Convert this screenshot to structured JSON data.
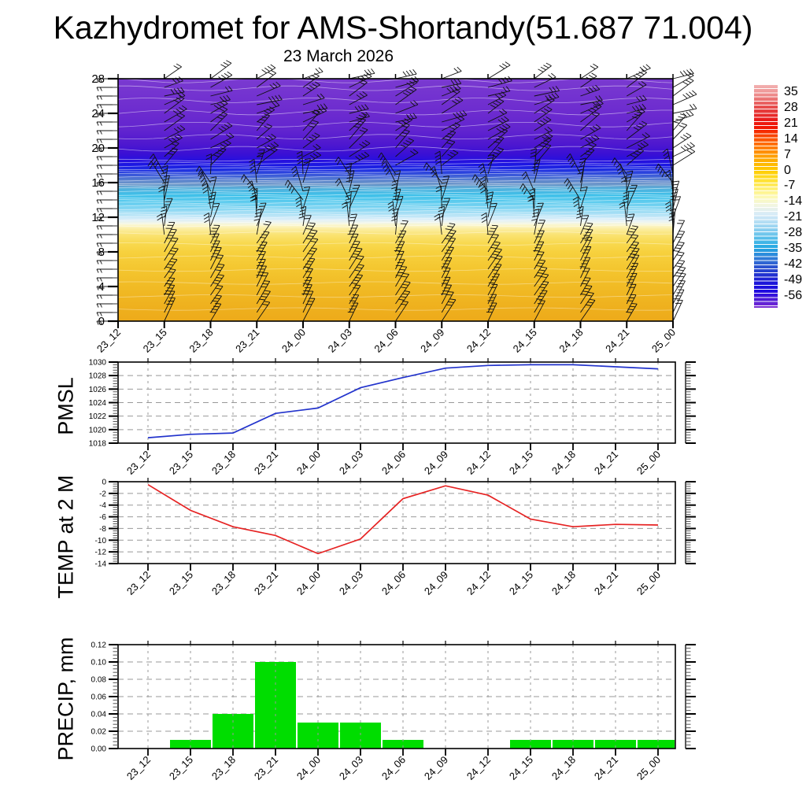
{
  "title": "Kazhydromet for AMS-Shortandy(51.687 71.004)",
  "subtitle": "23 March 2026",
  "x_labels": [
    "23_12",
    "23_15",
    "23_18",
    "23_21",
    "24_00",
    "24_03",
    "24_06",
    "24_09",
    "24_12",
    "24_15",
    "24_18",
    "24_21",
    "25_00"
  ],
  "chart_data": [
    {
      "id": "upper_air_section",
      "type": "heatmap",
      "title": "23 March 2026",
      "description": "time-height temperature cross-section with wind barbs and white contour lines",
      "x_categories": [
        "23_12",
        "23_15",
        "23_18",
        "23_21",
        "24_00",
        "24_03",
        "24_06",
        "24_09",
        "24_12",
        "24_15",
        "24_18",
        "24_21",
        "25_00"
      ],
      "ylim": [
        0,
        28
      ],
      "yticks": [
        0,
        4,
        8,
        12,
        16,
        20,
        24,
        28
      ],
      "ytick_labels": [
        "0",
        "4",
        "8",
        "12",
        "16",
        "20",
        "24",
        "28"
      ],
      "barb_columns": 13,
      "barb_rows": 29,
      "barb_color": "#101010",
      "contour_color": "#ffffff",
      "palette_stops": [
        {
          "pos": 0.0,
          "color": "#7a3ad0"
        },
        {
          "pos": 0.143,
          "color": "#6c2bcf"
        },
        {
          "pos": 0.214,
          "color": "#6124cf"
        },
        {
          "pos": 0.268,
          "color": "#4f18cf"
        },
        {
          "pos": 0.31,
          "color": "#3a10d4"
        },
        {
          "pos": 0.336,
          "color": "#2810dd"
        },
        {
          "pos": 0.357,
          "color": "#1a17e3"
        },
        {
          "pos": 0.379,
          "color": "#2133e1"
        },
        {
          "pos": 0.4,
          "color": "#3c5dd8"
        },
        {
          "pos": 0.421,
          "color": "#5c85cd"
        },
        {
          "pos": 0.436,
          "color": "#6e97c9"
        },
        {
          "pos": 0.454,
          "color": "#51b1dd"
        },
        {
          "pos": 0.479,
          "color": "#3ec0e9"
        },
        {
          "pos": 0.507,
          "color": "#5ccbee"
        },
        {
          "pos": 0.536,
          "color": "#85d6f2"
        },
        {
          "pos": 0.561,
          "color": "#b2e2f6"
        },
        {
          "pos": 0.579,
          "color": "#d8edf9"
        },
        {
          "pos": 0.593,
          "color": "#eff5ec"
        },
        {
          "pos": 0.604,
          "color": "#fbf6cc"
        },
        {
          "pos": 0.621,
          "color": "#fbeda0"
        },
        {
          "pos": 0.643,
          "color": "#fae373"
        },
        {
          "pos": 0.679,
          "color": "#f8d94f"
        },
        {
          "pos": 0.714,
          "color": "#f7d13e"
        },
        {
          "pos": 0.786,
          "color": "#f4c62f"
        },
        {
          "pos": 0.857,
          "color": "#f1bb25"
        },
        {
          "pos": 0.929,
          "color": "#efb21f"
        },
        {
          "pos": 1.0,
          "color": "#edaa1a"
        }
      ],
      "colorbar": {
        "tick_labels": [
          "35",
          "28",
          "21",
          "14",
          "7",
          "0",
          "-7",
          "-14",
          "-21",
          "-28",
          "-35",
          "-42",
          "-49",
          "-56"
        ],
        "colors_top_to_bottom": [
          "#f2b2b2",
          "#ee9090",
          "#e96666",
          "#e63b3b",
          "#e91c1c",
          "#f21500",
          "#fa4800",
          "#ff7300",
          "#ff9500",
          "#ffb300",
          "#ffcc00",
          "#ffdf2e",
          "#ffef6e",
          "#fdf9b0",
          "#f3f6e0",
          "#d9ecf7",
          "#b4def4",
          "#86cdef",
          "#51bce9",
          "#25a8e2",
          "#2e84da",
          "#2f5cd0",
          "#2337cf",
          "#1c17d8",
          "#1d0ce0",
          "#4a17d8",
          "#7c2ed2"
        ]
      }
    },
    {
      "id": "pmsl",
      "type": "line",
      "ylabel": "PMSL",
      "line_color": "#2233cc",
      "ylim": [
        1018,
        1030
      ],
      "yticks": [
        1018,
        1020,
        1022,
        1024,
        1026,
        1028,
        1030
      ],
      "ytick_labels": [
        "1018",
        "1020",
        "1022",
        "1024",
        "1026",
        "1028",
        "1030"
      ],
      "x_categories": [
        "23_12",
        "23_15",
        "23_18",
        "23_21",
        "24_00",
        "24_03",
        "24_06",
        "24_09",
        "24_12",
        "24_15",
        "24_18",
        "24_21",
        "25_00"
      ],
      "values": [
        1018.8,
        1019.3,
        1019.5,
        1022.4,
        1023.2,
        1026.2,
        1027.7,
        1029.1,
        1029.5,
        1029.6,
        1029.6,
        1029.3,
        1029.0
      ]
    },
    {
      "id": "temp2m",
      "type": "line",
      "ylabel": "TEMP at 2 M",
      "line_color": "#e62222",
      "ylim": [
        -14,
        0
      ],
      "yticks": [
        0,
        -2,
        -4,
        -6,
        -8,
        -10,
        -12,
        -14
      ],
      "ytick_labels": [
        "0",
        "-2",
        "-4",
        "-6",
        "-8",
        "-10",
        "-12",
        "-14"
      ],
      "x_categories": [
        "23_12",
        "23_15",
        "23_18",
        "23_21",
        "24_00",
        "24_03",
        "24_06",
        "24_09",
        "24_12",
        "24_15",
        "24_18",
        "24_21",
        "25_00"
      ],
      "values": [
        -0.5,
        -4.9,
        -7.7,
        -9.2,
        -12.3,
        -9.8,
        -2.9,
        -0.7,
        -2.3,
        -6.4,
        -7.7,
        -7.3,
        -7.4
      ]
    },
    {
      "id": "precip",
      "type": "bar",
      "ylabel": "PRECIP, mm",
      "bar_color": "#00dd00",
      "ylim": [
        0,
        0.12
      ],
      "yticks": [
        0,
        0.02,
        0.04,
        0.06,
        0.08,
        0.1,
        0.12
      ],
      "ytick_labels": [
        "0.00",
        "0.02",
        "0.04",
        "0.06",
        "0.08",
        "0.10",
        "0.12"
      ],
      "x_categories": [
        "23_12",
        "23_15",
        "23_18",
        "23_21",
        "24_00",
        "24_03",
        "24_06",
        "24_09",
        "24_12",
        "24_15",
        "24_18",
        "24_21",
        "25_00"
      ],
      "values": [
        0,
        0.01,
        0.04,
        0.1,
        0.03,
        0.03,
        0.01,
        0,
        0,
        0.01,
        0.01,
        0.01,
        0.01
      ]
    }
  ]
}
